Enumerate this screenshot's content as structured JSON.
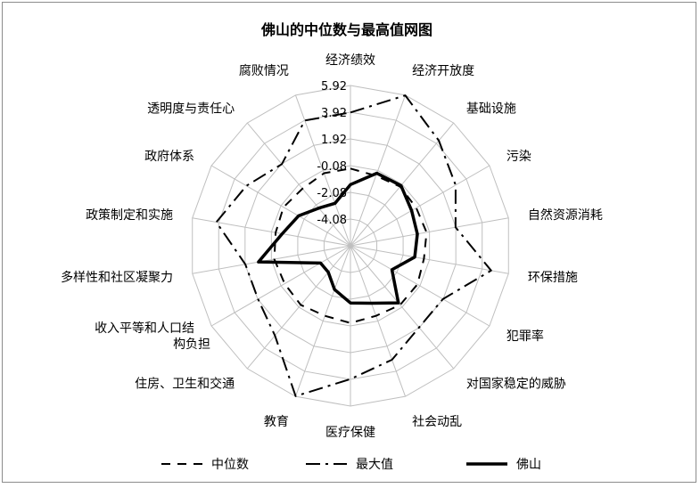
{
  "chart_data": {
    "type": "radar",
    "title": "佛山的中位数与最高值网图",
    "categories": [
      "经济绩效",
      "经济开放度",
      "基础设施",
      "污染",
      "自然资源消耗",
      "环保措施",
      "犯罪率",
      "对国家稳定的威胁",
      "社会动乱",
      "医疗保健",
      "教育",
      "住房、卫生和交通",
      "收入平等和人口结构负担",
      "多样性和社区凝聚力",
      "政策制定和实施",
      "政府体系",
      "透明度与责任心",
      "腐败情况"
    ],
    "category_label_lines": [
      [
        "经济绩效"
      ],
      [
        "经济开放度"
      ],
      [
        "基础设施"
      ],
      [
        "污染"
      ],
      [
        "自然资源消耗"
      ],
      [
        "环保措施"
      ],
      [
        "犯罪率"
      ],
      [
        "对国家稳定的威胁"
      ],
      [
        "社会动乱"
      ],
      [
        "医疗保健"
      ],
      [
        "教育"
      ],
      [
        "住房、卫生和交通"
      ],
      [
        "收入平等和人口结",
        "构负担"
      ],
      [
        "多样性和社区凝聚力"
      ],
      [
        "政策制定和实施"
      ],
      [
        "政府体系"
      ],
      [
        "透明度与责任心"
      ],
      [
        "腐败情况"
      ]
    ],
    "axis": {
      "min": -6.08,
      "max": 5.92,
      "step": 2,
      "tick_labels": [
        "-4.08",
        "-2.08",
        "-0.08",
        "1.92",
        "3.92",
        "5.92"
      ],
      "grid": true
    },
    "legend_position": "bottom",
    "series": [
      {
        "name": "中位数",
        "style": "dash",
        "color": "#000000",
        "values": [
          -0.3,
          -0.5,
          -0.3,
          -0.4,
          -0.3,
          -0.5,
          -0.3,
          -0.3,
          -0.5,
          -0.3,
          -0.5,
          -0.3,
          -0.4,
          -0.3,
          -0.4,
          -0.3,
          -0.5,
          -0.3
        ]
      },
      {
        "name": "最大值",
        "style": "dashdot",
        "color": "#000000",
        "values": [
          3.9,
          5.9,
          4.2,
          3.0,
          1.9,
          4.6,
          1.9,
          1.9,
          3.0,
          3.9,
          5.9,
          2.7,
          1.9,
          1.9,
          4.1,
          2.9,
          1.9,
          3.9
        ]
      },
      {
        "name": "佛山",
        "style": "solid",
        "color": "#000000",
        "values": [
          -1.5,
          -0.3,
          -0.2,
          -0.8,
          -1.0,
          -1.2,
          -2.5,
          -0.5,
          -1.5,
          -1.8,
          -2.6,
          -3.5,
          -3.5,
          0.9,
          -0.9,
          -1.6,
          -2.4,
          -2.7
        ]
      }
    ]
  }
}
